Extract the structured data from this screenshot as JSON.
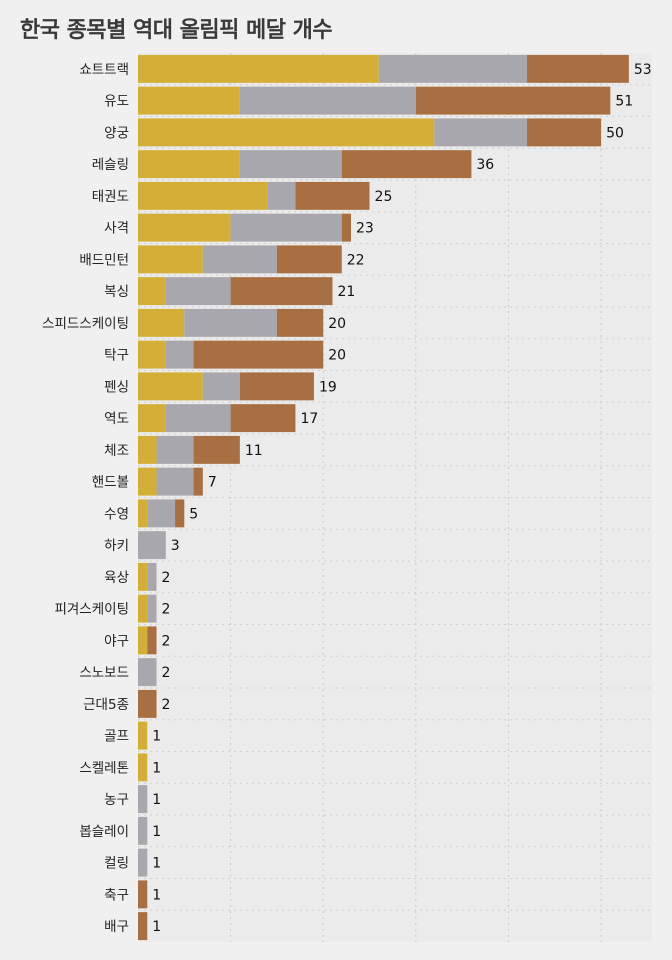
{
  "chart_data": {
    "type": "bar",
    "orientation": "horizontal",
    "stacked": true,
    "title": "한국 종목별 역대 올림픽 메달 개수",
    "categories": [
      "쇼트트랙",
      "유도",
      "양궁",
      "레슬링",
      "태권도",
      "사격",
      "배드민턴",
      "복싱",
      "스피드스케이팅",
      "탁구",
      "펜싱",
      "역도",
      "체조",
      "핸드볼",
      "수영",
      "하키",
      "육상",
      "피겨스케이팅",
      "야구",
      "스노보드",
      "근대5종",
      "골프",
      "스켈레톤",
      "농구",
      "봅슬레이",
      "컬링",
      "축구",
      "배구"
    ],
    "series": [
      {
        "color": "#d4af37",
        "values": [
          26,
          11,
          32,
          11,
          14,
          10,
          7,
          3,
          5,
          3,
          7,
          3,
          2,
          2,
          1,
          0,
          1,
          1,
          1,
          0,
          0,
          1,
          1,
          0,
          0,
          0,
          0,
          0
        ]
      },
      {
        "color": "#a8a7ad",
        "values": [
          16,
          19,
          10,
          11,
          3,
          12,
          8,
          7,
          10,
          3,
          4,
          7,
          4,
          4,
          3,
          3,
          1,
          1,
          0,
          2,
          0,
          0,
          0,
          1,
          1,
          1,
          0,
          0
        ]
      },
      {
        "color": "#a86f43",
        "values": [
          11,
          21,
          8,
          14,
          8,
          1,
          7,
          11,
          5,
          14,
          8,
          7,
          5,
          1,
          1,
          0,
          0,
          0,
          1,
          0,
          2,
          0,
          0,
          0,
          0,
          0,
          1,
          1
        ]
      }
    ],
    "totals": [
      53,
      51,
      50,
      36,
      25,
      23,
      22,
      21,
      20,
      20,
      19,
      17,
      11,
      7,
      5,
      3,
      2,
      2,
      2,
      2,
      2,
      1,
      1,
      1,
      1,
      1,
      1,
      1
    ],
    "xlim": [
      0,
      55.5
    ],
    "x_grid_step": 10,
    "grid": true,
    "xlabel": "",
    "ylabel": ""
  }
}
